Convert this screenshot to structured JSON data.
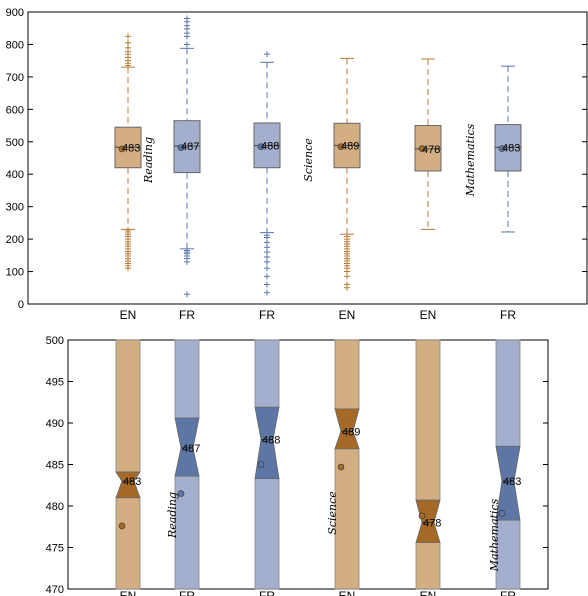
{
  "colors": {
    "en": "#b87b35",
    "fr": "#5a77ad",
    "en_fill": "#d2ae82",
    "fr_fill": "#a3afcc",
    "en_dark": "#a56a27",
    "fr_dark": "#5e76a6"
  },
  "chart_data": [
    {
      "type": "box",
      "ylim": [
        0,
        900
      ],
      "yticks": [
        "0",
        "100",
        "200",
        "300",
        "400",
        "500",
        "600",
        "700",
        "800",
        "900"
      ],
      "categories": [
        "EN",
        "FR",
        "FR",
        "EN",
        "EN",
        "FR"
      ],
      "subjects": [
        {
          "label": "Reading",
          "between": [
            1,
            2
          ]
        },
        {
          "label": "Science",
          "between": [
            3,
            4
          ]
        },
        {
          "label": "Mathematics",
          "between": [
            5,
            6
          ]
        }
      ],
      "boxes": [
        {
          "cat": "EN",
          "color": "en",
          "q1": 420,
          "median": 483,
          "q3": 545,
          "mean": 478,
          "wlow": 230,
          "whigh": 730,
          "label": "483",
          "fliers": [
            110,
            118,
            125,
            132,
            140,
            148,
            155,
            162,
            170,
            178,
            185,
            192,
            200,
            208,
            215,
            222,
            228,
            735,
            742,
            750,
            760,
            770,
            778,
            790,
            805,
            825
          ]
        },
        {
          "cat": "FR",
          "color": "fr",
          "q1": 405,
          "median": 487,
          "q3": 565,
          "mean": 482,
          "wlow": 170,
          "whigh": 788,
          "label": "487",
          "fliers": [
            30,
            130,
            140,
            148,
            155,
            160,
            165,
            800,
            825,
            835,
            848,
            858,
            870,
            880
          ]
        },
        {
          "cat": "FR",
          "color": "fr",
          "q1": 420,
          "median": 488,
          "q3": 558,
          "mean": 485,
          "wlow": 220,
          "whigh": 745,
          "label": "488",
          "fliers": [
            35,
            60,
            85,
            110,
            130,
            145,
            160,
            175,
            190,
            205,
            212,
            770
          ]
        },
        {
          "cat": "EN",
          "color": "en",
          "q1": 420,
          "median": 489,
          "q3": 557,
          "mean": 485,
          "wlow": 215,
          "whigh": 757,
          "label": "489",
          "fliers": [
            50,
            60,
            85,
            100,
            110,
            118,
            125,
            133,
            140,
            148,
            155,
            162,
            170,
            178,
            185,
            192,
            200,
            208
          ]
        },
        {
          "cat": "EN",
          "color": "en",
          "q1": 410,
          "median": 478,
          "q3": 550,
          "mean": 479,
          "wlow": 230,
          "whigh": 755,
          "label": "478",
          "fliers": []
        },
        {
          "cat": "FR",
          "color": "fr",
          "q1": 410,
          "median": 483,
          "q3": 553,
          "mean": 479,
          "wlow": 222,
          "whigh": 733,
          "label": "483",
          "fliers": []
        }
      ]
    },
    {
      "type": "notched-box",
      "ylim": [
        470,
        500
      ],
      "yticks": [
        "470",
        "475",
        "480",
        "485",
        "490",
        "495",
        "500"
      ],
      "categories": [
        "EN",
        "FR",
        "FR",
        "EN",
        "EN",
        "FR"
      ],
      "subjects": [
        {
          "label": "Reading",
          "between": [
            1,
            2
          ]
        },
        {
          "label": "Science",
          "between": [
            3,
            4
          ]
        },
        {
          "label": "Mathematics",
          "between": [
            5,
            6
          ]
        }
      ],
      "boxes": [
        {
          "color": "en",
          "median": 483,
          "notch_low": 481,
          "notch_high": 484.1,
          "mean": 477.6,
          "label": "483"
        },
        {
          "color": "fr",
          "median": 487,
          "notch_low": 483.6,
          "notch_high": 490.6,
          "mean": 481.5,
          "label": "487"
        },
        {
          "color": "fr",
          "median": 488,
          "notch_low": 483.3,
          "notch_high": 491.9,
          "mean": 485,
          "label": "488"
        },
        {
          "color": "en",
          "median": 489,
          "notch_low": 486.9,
          "notch_high": 491.7,
          "mean": 484.7,
          "label": "489"
        },
        {
          "color": "en",
          "median": 478,
          "notch_low": 475.6,
          "notch_high": 480.7,
          "mean": 478.8,
          "label": "478"
        },
        {
          "color": "fr",
          "median": 483,
          "notch_low": 478.3,
          "notch_high": 487.2,
          "mean": 479.1,
          "label": "483"
        }
      ]
    }
  ]
}
